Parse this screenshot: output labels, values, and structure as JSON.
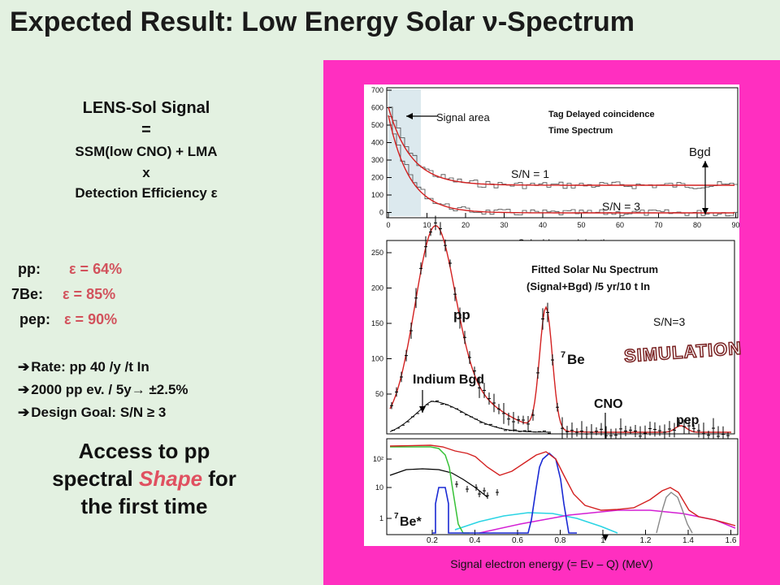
{
  "title": "Expected Result: Low Energy Solar ν-Spectrum",
  "left": {
    "lens_title": "LENS-Sol Signal",
    "equals": "=",
    "ssm": "SSM(low CNO) + LMA",
    "times": "x",
    "detection": "Detection Efficiency ε",
    "efficiencies": [
      {
        "label": "pp:",
        "value": "ε = 64%"
      },
      {
        "label": "7Be:",
        "value": "ε = 85%"
      },
      {
        "label": "pep:",
        "value": "ε = 90%"
      }
    ],
    "bullets": [
      "Rate: pp 40 /y /t In",
      "2000 pp ev. / 5y→ ±2.5%",
      "Design Goal: S/N ≥ 3"
    ],
    "access_1": "Access to pp",
    "access_2a": "spectral ",
    "access_2b": "Shape",
    "access_2c": " for",
    "access_3": "the first time"
  },
  "colors": {
    "background": "#e3f1e1",
    "panel": "#ff2fc0",
    "fit_red": "#e02020",
    "highlight": "#d2525c"
  },
  "top_plot": {
    "signal_area": "Signal area",
    "tag_title_1": "Tag Delayed coincidence",
    "tag_title_2": "Time Spectrum",
    "bgd": "Bgd",
    "sn1": "S/N = 1",
    "sn3": "S/N = 3",
    "xlabel": "Coincidence delay time µs",
    "yticks": [
      "700",
      "600",
      "500",
      "400",
      "300",
      "200",
      "100",
      "0"
    ],
    "xticks": [
      "0",
      "10",
      "20",
      "30",
      "40",
      "50",
      "60",
      "70",
      "80",
      "90"
    ]
  },
  "mid_plot": {
    "title_1": "Fitted Solar Nu Spectrum",
    "title_2": "(Signal+Bgd) /5 yr/10 t In",
    "sn": "S/N=3",
    "simulation": "SIMULATION",
    "pp": "pp",
    "be7_sup": "7",
    "be7": "Be",
    "indium": "Indium Bgd",
    "cno": "CNO",
    "pep": "pep",
    "yticks": [
      "250",
      "200",
      "150",
      "100",
      "50"
    ]
  },
  "bot_plot": {
    "yticks": [
      "10²",
      "10",
      "1"
    ],
    "be7star_sup": "7",
    "be7star": "Be*",
    "xticks": [
      "0.2",
      "0.4",
      "0.6",
      "0.8",
      "1",
      "1.2",
      "1.4",
      "1.6"
    ]
  },
  "xcaption": "Signal electron energy (= Eν – Q) (MeV)"
}
